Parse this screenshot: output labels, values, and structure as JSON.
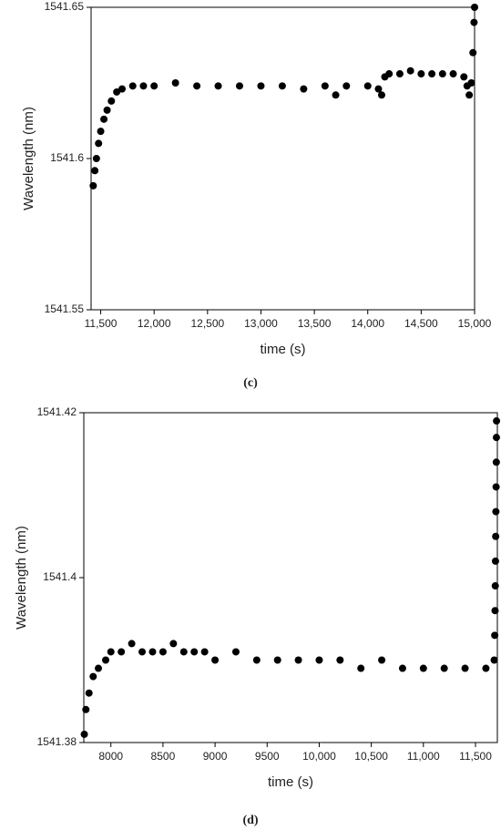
{
  "chart_data": [
    {
      "type": "scatter",
      "caption": "(c)",
      "x_label": "time (s)",
      "y_label": "Wavelength (nm)",
      "xlim": [
        11410,
        15000
      ],
      "ylim": [
        1541.55,
        1541.65
      ],
      "xticks": [
        {
          "value": 11500,
          "label": "11,500"
        },
        {
          "value": 12000,
          "label": "12,000"
        },
        {
          "value": 12500,
          "label": "12,500"
        },
        {
          "value": 13000,
          "label": "13,000"
        },
        {
          "value": 13500,
          "label": "13,500"
        },
        {
          "value": 14000,
          "label": "14,000"
        },
        {
          "value": 14500,
          "label": "14,500"
        },
        {
          "value": 15000,
          "label": "15,000"
        }
      ],
      "yticks": [
        1541.55,
        1541.6,
        1541.65
      ],
      "series": [
        {
          "color": "#000000",
          "x": [
            11430,
            11445,
            11460,
            11480,
            11500,
            11530,
            11560,
            11600,
            11650,
            11700,
            11800,
            11900,
            12000,
            12200,
            12400,
            12600,
            12800,
            13000,
            13200,
            13400,
            13600,
            13700,
            13800,
            14000,
            14100,
            14130,
            14160,
            14200,
            14300,
            14400,
            14500,
            14600,
            14700,
            14800,
            14900,
            14930,
            14950,
            14970,
            14985,
            14995,
            15000
          ],
          "values": [
            1541.591,
            1541.596,
            1541.6,
            1541.605,
            1541.609,
            1541.613,
            1541.616,
            1541.619,
            1541.622,
            1541.623,
            1541.624,
            1541.624,
            1541.624,
            1541.625,
            1541.624,
            1541.624,
            1541.624,
            1541.624,
            1541.624,
            1541.623,
            1541.624,
            1541.621,
            1541.624,
            1541.624,
            1541.623,
            1541.621,
            1541.627,
            1541.628,
            1541.628,
            1541.629,
            1541.628,
            1541.628,
            1541.628,
            1541.628,
            1541.627,
            1541.624,
            1541.621,
            1541.625,
            1541.635,
            1541.645,
            1541.65
          ]
        }
      ]
    },
    {
      "type": "scatter",
      "caption": "(d)",
      "x_label": "time (s)",
      "y_label": "Wavelength (nm)",
      "xlim": [
        7740,
        11710
      ],
      "ylim": [
        1541.38,
        1541.42
      ],
      "xticks": [
        8000,
        8500,
        9000,
        9500,
        {
          "value": 10000,
          "label": "10,000"
        },
        {
          "value": 10500,
          "label": "10,500"
        },
        {
          "value": 11000,
          "label": "11,000"
        },
        {
          "value": 11500,
          "label": "11,500"
        }
      ],
      "yticks": [
        1541.38,
        1541.4,
        1541.42
      ],
      "series": [
        {
          "color": "#000000",
          "x": [
            7745,
            7760,
            7790,
            7830,
            7880,
            7950,
            8000,
            8100,
            8200,
            8300,
            8400,
            8500,
            8600,
            8700,
            8800,
            8900,
            9000,
            9200,
            9400,
            9600,
            9800,
            10000,
            10200,
            10400,
            10600,
            10800,
            11000,
            11200,
            11400,
            11600,
            11680,
            11685,
            11688,
            11690,
            11692,
            11694,
            11696,
            11698,
            11700,
            11701,
            11702
          ],
          "values": [
            1541.381,
            1541.384,
            1541.386,
            1541.388,
            1541.389,
            1541.39,
            1541.391,
            1541.391,
            1541.392,
            1541.391,
            1541.391,
            1541.391,
            1541.392,
            1541.391,
            1541.391,
            1541.391,
            1541.39,
            1541.391,
            1541.39,
            1541.39,
            1541.39,
            1541.39,
            1541.39,
            1541.389,
            1541.39,
            1541.389,
            1541.389,
            1541.389,
            1541.389,
            1541.389,
            1541.39,
            1541.393,
            1541.396,
            1541.399,
            1541.402,
            1541.405,
            1541.408,
            1541.411,
            1541.414,
            1541.417,
            1541.419
          ]
        }
      ]
    }
  ]
}
